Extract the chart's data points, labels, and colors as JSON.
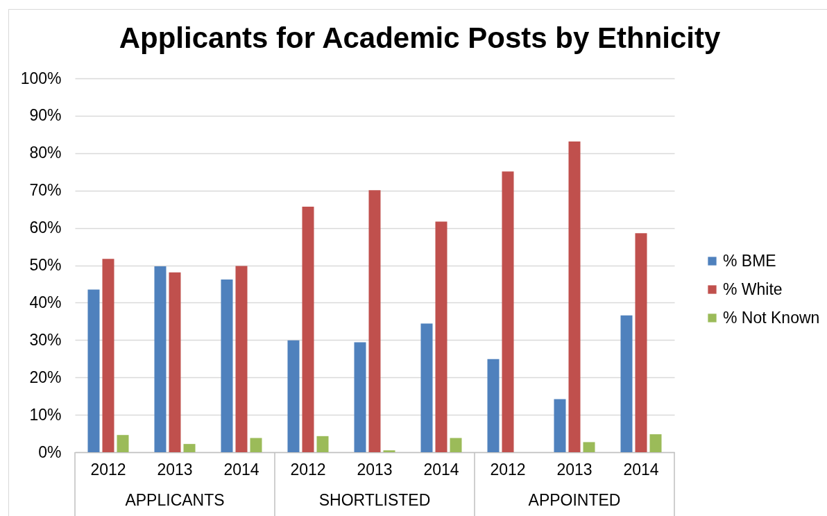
{
  "chart_data": {
    "type": "bar",
    "title": "Applicants for Academic Posts by Ethnicity",
    "categories": [
      "2012",
      "2013",
      "2014",
      "2012",
      "2013",
      "2014",
      "2012",
      "2013",
      "2014"
    ],
    "annotations": [
      "APPLICANTS",
      "SHORTLISTED",
      "APPOINTED"
    ],
    "series": [
      {
        "name": "% BME",
        "color": "#4f81bd",
        "values": [
          43.5,
          49.7,
          46.2,
          29.9,
          29.4,
          34.4,
          24.9,
          14.2,
          36.6
        ]
      },
      {
        "name": "% White",
        "color": "#c0504d",
        "values": [
          51.7,
          48.1,
          49.8,
          65.7,
          70.1,
          61.7,
          75.1,
          83.1,
          58.6
        ]
      },
      {
        "name": "% Not Known",
        "color": "#9bbb59",
        "values": [
          4.6,
          2.2,
          3.8,
          4.3,
          0.5,
          3.8,
          null,
          2.7,
          4.8
        ]
      }
    ],
    "ylim": [
      0,
      100
    ],
    "yticks": [
      {
        "value": 0,
        "label": "0%"
      },
      {
        "value": 10,
        "label": "10%"
      },
      {
        "value": 20,
        "label": "20%"
      },
      {
        "value": 30,
        "label": "30%"
      },
      {
        "value": 40,
        "label": "40%"
      },
      {
        "value": 50,
        "label": "50%"
      },
      {
        "value": 60,
        "label": "60%"
      },
      {
        "value": 70,
        "label": "70%"
      },
      {
        "value": 80,
        "label": "80%"
      },
      {
        "value": 90,
        "label": "90%"
      },
      {
        "value": 100,
        "label": "100%"
      }
    ],
    "grid": "y",
    "legend": "right"
  }
}
